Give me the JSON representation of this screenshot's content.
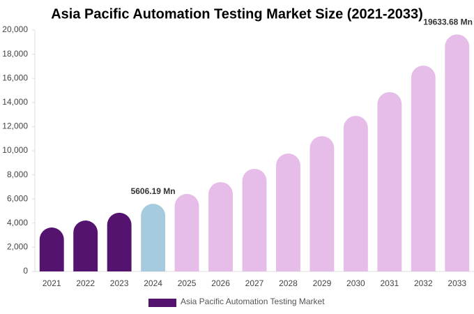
{
  "chart_data": {
    "type": "bar",
    "title": "Asia Pacific Automation Testing Market Size (2021-2033)",
    "categories": [
      "2021",
      "2022",
      "2023",
      "2024",
      "2025",
      "2026",
      "2027",
      "2028",
      "2029",
      "2030",
      "2031",
      "2032",
      "2033"
    ],
    "series": [
      {
        "name": "Asia Pacific Automation Testing Market",
        "color": "#54136e",
        "values": [
          3640,
          4220,
          4860,
          5606.19,
          6420,
          7400,
          8500,
          9770,
          11210,
          12890,
          14860,
          17050,
          19633.68
        ],
        "value_labels": [
          null,
          null,
          null,
          "5606.19 Mn",
          null,
          null,
          null,
          null,
          null,
          null,
          null,
          null,
          "19633.68 Mn"
        ],
        "colors": [
          "#54136e",
          "#54136e",
          "#54136e",
          "#a6cbdf",
          "#e6bde8",
          "#e6bde8",
          "#e6bde8",
          "#e6bde8",
          "#e6bde8",
          "#e6bde8",
          "#e6bde8",
          "#e6bde8",
          "#e6bde8"
        ]
      }
    ],
    "ylim": [
      0,
      20000
    ],
    "yticks": [
      0,
      {
        "value": 2000,
        "label": "2,000"
      },
      {
        "value": 4000,
        "label": "4,000"
      },
      {
        "value": 6000,
        "label": "6,000"
      },
      {
        "value": 8000,
        "label": "8,000"
      },
      {
        "value": 10000,
        "label": "10,000"
      },
      {
        "value": 12000,
        "label": "12,000"
      },
      {
        "value": 14000,
        "label": "14,000"
      },
      {
        "value": 16000,
        "label": "16,000"
      },
      {
        "value": 18000,
        "label": "18,000"
      },
      {
        "value": 20000,
        "label": "20,000"
      }
    ],
    "grid": false,
    "legend": "bottom"
  }
}
